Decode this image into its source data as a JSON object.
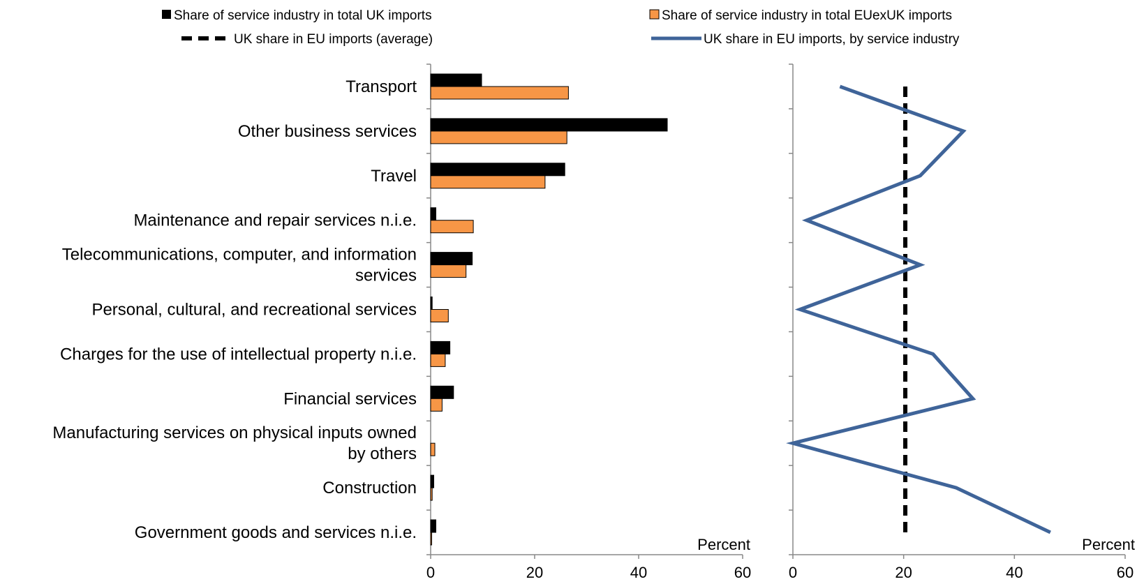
{
  "chart_data": {
    "type": "bar",
    "categories": [
      "Transport",
      "Other business services",
      "Travel",
      "Maintenance and repair services n.i.e.",
      "Telecommunications, computer, and information services",
      "Personal, cultural, and recreational services",
      "Charges for the use of intellectual property n.i.e.",
      "Financial services",
      "Manufacturing services on physical inputs owned by others",
      "Construction",
      "Government goods and services n.i.e."
    ],
    "category_lines": [
      [
        "Transport"
      ],
      [
        "Other business services"
      ],
      [
        "Travel"
      ],
      [
        "Maintenance and repair services n.i.e."
      ],
      [
        "Telecommunications, computer, and information",
        "services"
      ],
      [
        "Personal, cultural, and recreational services"
      ],
      [
        "Charges for the use of intellectual property n.i.e."
      ],
      [
        "Financial services"
      ],
      [
        "Manufacturing services on physical inputs owned",
        "by others"
      ],
      [
        "Construction"
      ],
      [
        "Government goods and services n.i.e."
      ]
    ],
    "panels": [
      {
        "type": "bar",
        "orientation": "horizontal",
        "xlim": [
          0,
          60
        ],
        "xticks": [
          0,
          20,
          40,
          60
        ],
        "unit_label": "Percent",
        "series": [
          {
            "name": "Share of service industry in total UK imports",
            "color": "#000000",
            "values": [
              9.8,
              45.5,
              25.8,
              1.0,
              8.0,
              0.3,
              3.7,
              4.4,
              0.0,
              0.6,
              1.0
            ]
          },
          {
            "name": "Share of service industry in total EUexUK imports",
            "color": "#F79646",
            "values": [
              26.5,
              26.2,
              22.0,
              8.2,
              6.8,
              3.4,
              2.8,
              2.2,
              0.8,
              0.3,
              0.2
            ]
          }
        ]
      },
      {
        "type": "line",
        "orientation": "horizontal",
        "xlim": [
          0,
          60
        ],
        "xticks": [
          0,
          20,
          40,
          60
        ],
        "unit_label": "Percent",
        "series": [
          {
            "name": "UK share in EU imports (average)",
            "color": "#000000",
            "style": "dashed",
            "value": 20.3
          },
          {
            "name": "UK share in EU imports, by service industry",
            "color": "#3F6499",
            "style": "solid",
            "values": [
              8.5,
              30.8,
              23.0,
              2.5,
              23.0,
              1.3,
              25.3,
              32.5,
              0.0,
              29.5,
              46.5
            ]
          }
        ]
      }
    ]
  }
}
